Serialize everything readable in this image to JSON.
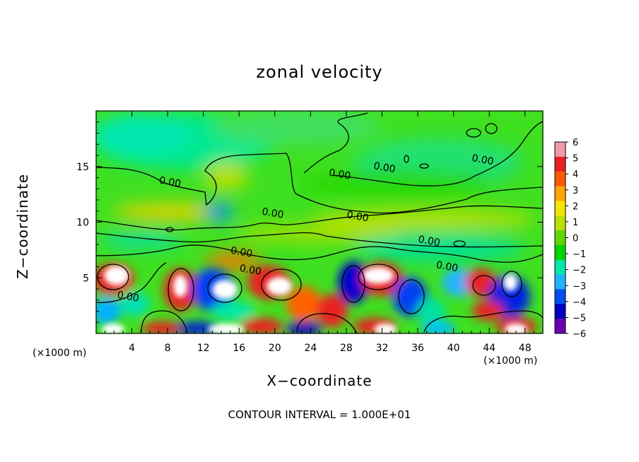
{
  "chart_data": {
    "type": "heatmap",
    "title": "zonal velocity",
    "xlabel": "X−coordinate",
    "ylabel": "Z−coordinate",
    "x_unit_label": "(×1000 m)",
    "x_unit_label_right": "(×1000 m)",
    "footnote": "CONTOUR INTERVAL = 1.000E+01",
    "xlim": [
      0,
      50
    ],
    "ylim": [
      0,
      20
    ],
    "x_ticks": [
      4,
      8,
      12,
      16,
      20,
      24,
      28,
      32,
      36,
      40,
      44,
      48
    ],
    "y_ticks": [
      5,
      10,
      15
    ],
    "colorbar": {
      "min": -6,
      "max": 6,
      "tick_labels": [
        "6",
        "5",
        "4",
        "3",
        "2",
        "1",
        "0",
        "−1",
        "−2",
        "−3",
        "−4",
        "−5",
        "−6"
      ],
      "colors": [
        "#f29aa8",
        "#e82020",
        "#ff5a00",
        "#ffa500",
        "#f5e600",
        "#b8e000",
        "#5ed700",
        "#00d400",
        "#00e8a8",
        "#20b4ff",
        "#0050f0",
        "#0000c0",
        "#6a00b0"
      ]
    },
    "contour_levels": [
      0
    ],
    "contour_labels": [
      {
        "text": "0.00",
        "x": 7,
        "y": 13.5
      },
      {
        "text": "0.00",
        "x": 26,
        "y": 14.2
      },
      {
        "text": "0.00",
        "x": 31,
        "y": 14.8
      },
      {
        "text": "0.00",
        "x": 42,
        "y": 15.5
      },
      {
        "text": "0.00",
        "x": 18.5,
        "y": 10.7
      },
      {
        "text": "0.00",
        "x": 28,
        "y": 10.4
      },
      {
        "text": "0.00",
        "x": 36,
        "y": 8.2
      },
      {
        "text": "0.00",
        "x": 15,
        "y": 7.2
      },
      {
        "text": "0.00",
        "x": 16,
        "y": 5.6
      },
      {
        "text": "0.00",
        "x": 38,
        "y": 5.9
      },
      {
        "text": "0.00",
        "x": 2.3,
        "y": 3.2
      }
    ]
  }
}
